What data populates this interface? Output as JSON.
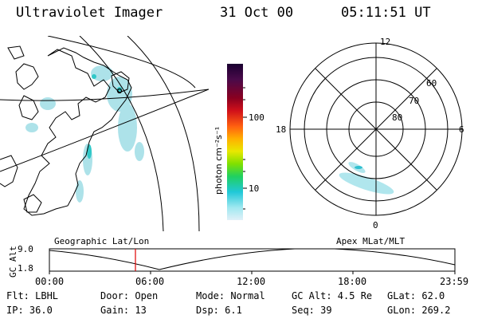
{
  "header": {
    "title": "Ultraviolet Imager",
    "date": "31 Oct 00",
    "time": "05:11:51 UT"
  },
  "colorbar": {
    "label": "photon cm⁻²s⁻¹",
    "ticks": [
      "100",
      "10"
    ],
    "colors": [
      "#1a0030",
      "#4a0a4a",
      "#8a0020",
      "#d0101a",
      "#ff6010",
      "#ffb000",
      "#e8e800",
      "#80e000",
      "#20d060",
      "#20c8d8",
      "#a0e8f0",
      "#e0f0f8"
    ]
  },
  "polar": {
    "mlt_labels": {
      "top": "12",
      "bottom": "0",
      "left": "18",
      "right": "6"
    },
    "lat_labels": [
      "60",
      "70",
      "80"
    ]
  },
  "altitude_plot": {
    "ylabel": "GC Alt",
    "y_ticks": [
      "9.0",
      "1.8"
    ],
    "left_caption": "Geographic Lat/Lon",
    "right_caption": "Apex MLat/MLT",
    "x_ticks": [
      "00:00",
      "06:00",
      "12:00",
      "18:00",
      "23:59"
    ],
    "marker_color": "#e00000"
  },
  "info": {
    "row1": {
      "filter": "Flt: LBHL",
      "door": "Door: Open",
      "mode": "Mode: Normal",
      "gc_alt": "GC Alt: 4.5 Re",
      "glat": "GLat:  62.0"
    },
    "row2": {
      "ip": "IP: 36.0",
      "gain": "Gain: 13",
      "dsp": "Dsp:    6.1",
      "seq": "Seq: 39",
      "glon": "GLon: 269.2"
    }
  }
}
